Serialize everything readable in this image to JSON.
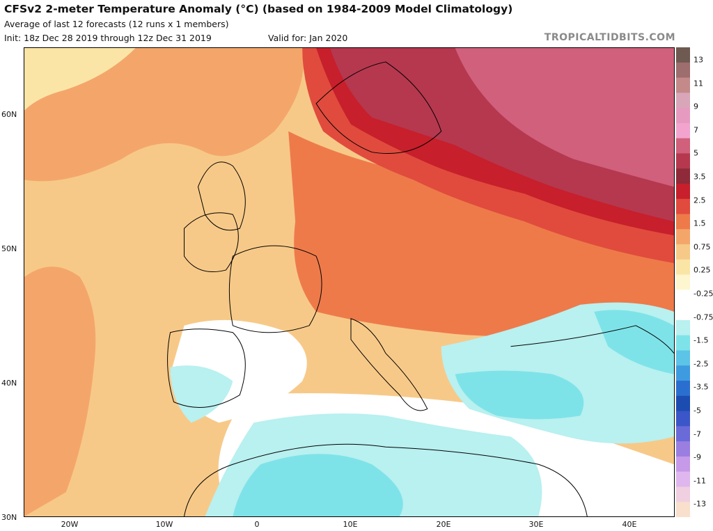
{
  "header": {
    "title": "CFSv2 2-meter Temperature Anomaly (°C) (based on 1984-2009 Model Climatology)",
    "subtitle": "Average of last 12 forecasts (12 runs x 1 members)",
    "init": "Init: 18z Dec 28 2019 through 12z Dec 31 2019",
    "valid": "Valid for: Jan 2020"
  },
  "watermark": "TROPICALTIDBITS.COM",
  "map": {
    "region": "Europe",
    "lat_labels": [
      "60N",
      "50N",
      "40N",
      "30N"
    ],
    "lon_labels": [
      "20W",
      "10W",
      "0",
      "10E",
      "20E",
      "30E",
      "40E"
    ]
  },
  "colorbar": {
    "labels": [
      "13",
      "11",
      "9",
      "7",
      "5",
      "3.5",
      "2.5",
      "1.5",
      "0.75",
      "0.25",
      "-0.25",
      "-0.75",
      "-1.5",
      "-2.5",
      "-3.5",
      "-5",
      "-7",
      "-9",
      "-11",
      "-13"
    ],
    "colors": [
      "#6e5a50",
      "#9e6d6d",
      "#c48a8a",
      "#d8a6b8",
      "#e79ac0",
      "#f2a4cf",
      "#d0607c",
      "#b5384f",
      "#8f2a3a",
      "#c71f2b",
      "#e04b3d",
      "#ee7a4a",
      "#f4a66a",
      "#f7c988",
      "#fbe5a6",
      "#fdf6cf",
      "#ffffff",
      "#ffffff",
      "#b9f0f0",
      "#7ee3e8",
      "#5cc4e6",
      "#3f9be0",
      "#2a6fd0",
      "#1c4cb0",
      "#3a56c8",
      "#6a6ad8",
      "#9a7ee0",
      "#c69ae8",
      "#e0b6ee",
      "#f0cfe0",
      "#f8e0cc"
    ]
  }
}
